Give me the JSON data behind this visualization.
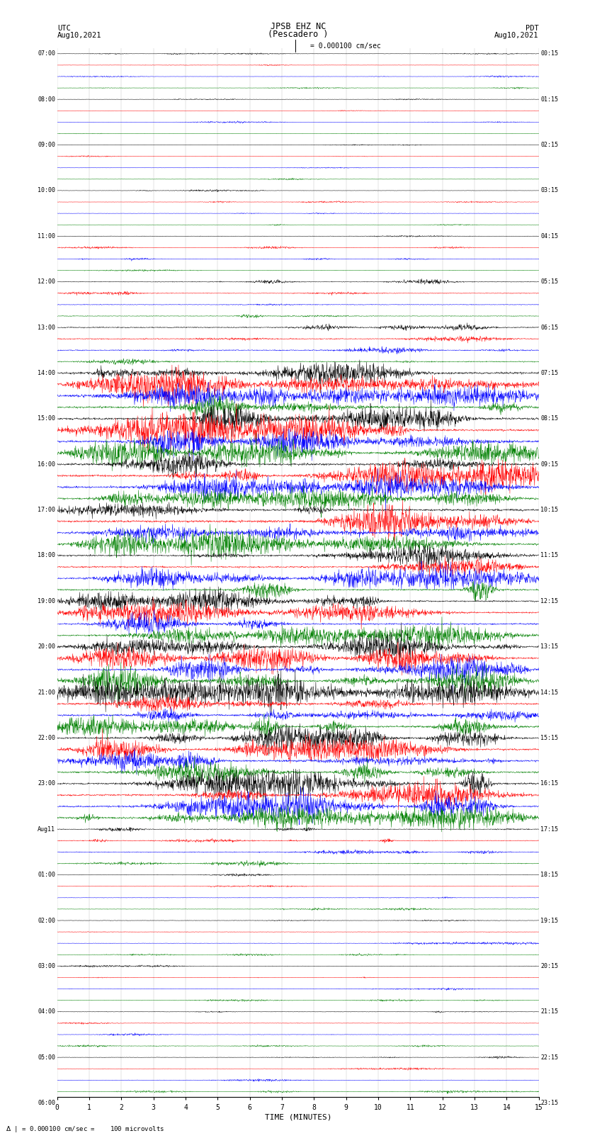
{
  "title_line1": "JPSB EHZ NC",
  "title_line2": "(Pescadero )",
  "scale_label": "= 0.000100 cm/sec",
  "left_label_utc": "UTC",
  "left_label_date": "Aug10,2021",
  "right_label_pdt": "PDT",
  "right_label_date": "Aug10,2021",
  "bottom_label": "TIME (MINUTES)",
  "bottom_note": "= 0.000100 cm/sec =    100 microvolts",
  "time_axis_max": 15,
  "colors": [
    "black",
    "red",
    "blue",
    "green"
  ],
  "fig_width": 8.5,
  "fig_height": 16.13,
  "bg_color": "white",
  "dpi": 100,
  "total_rows": 92,
  "noise_base": 0.12,
  "left_time_labels": [
    "07:00",
    "",
    "",
    "",
    "08:00",
    "",
    "",
    "",
    "09:00",
    "",
    "",
    "",
    "10:00",
    "",
    "",
    "",
    "11:00",
    "",
    "",
    "",
    "12:00",
    "",
    "",
    "",
    "13:00",
    "",
    "",
    "",
    "14:00",
    "",
    "",
    "",
    "15:00",
    "",
    "",
    "",
    "16:00",
    "",
    "",
    "",
    "17:00",
    "",
    "",
    "",
    "18:00",
    "",
    "",
    "",
    "19:00",
    "",
    "",
    "",
    "20:00",
    "",
    "",
    "",
    "21:00",
    "",
    "",
    "",
    "22:00",
    "",
    "",
    "",
    "23:00",
    "",
    "",
    "",
    "Aug11",
    "",
    "",
    "",
    "01:00",
    "",
    "",
    "",
    "02:00",
    "",
    "",
    "",
    "03:00",
    "",
    "",
    "",
    "04:00",
    "",
    "",
    "",
    "05:00",
    "",
    "",
    "",
    "06:00",
    "",
    "",
    ""
  ],
  "right_time_labels": [
    "00:15",
    "",
    "",
    "",
    "01:15",
    "",
    "",
    "",
    "02:15",
    "",
    "",
    "",
    "03:15",
    "",
    "",
    "",
    "04:15",
    "",
    "",
    "",
    "05:15",
    "",
    "",
    "",
    "06:15",
    "",
    "",
    "",
    "07:15",
    "",
    "",
    "",
    "08:15",
    "",
    "",
    "",
    "09:15",
    "",
    "",
    "",
    "10:15",
    "",
    "",
    "",
    "11:15",
    "",
    "",
    "",
    "12:15",
    "",
    "",
    "",
    "13:15",
    "",
    "",
    "",
    "14:15",
    "",
    "",
    "",
    "15:15",
    "",
    "",
    "",
    "16:15",
    "",
    "",
    "",
    "17:15",
    "",
    "",
    "",
    "18:15",
    "",
    "",
    "",
    "19:15",
    "",
    "",
    "",
    "20:15",
    "",
    "",
    "",
    "21:15",
    "",
    "",
    "",
    "22:15",
    "",
    "",
    "",
    "23:15",
    "",
    "",
    ""
  ]
}
